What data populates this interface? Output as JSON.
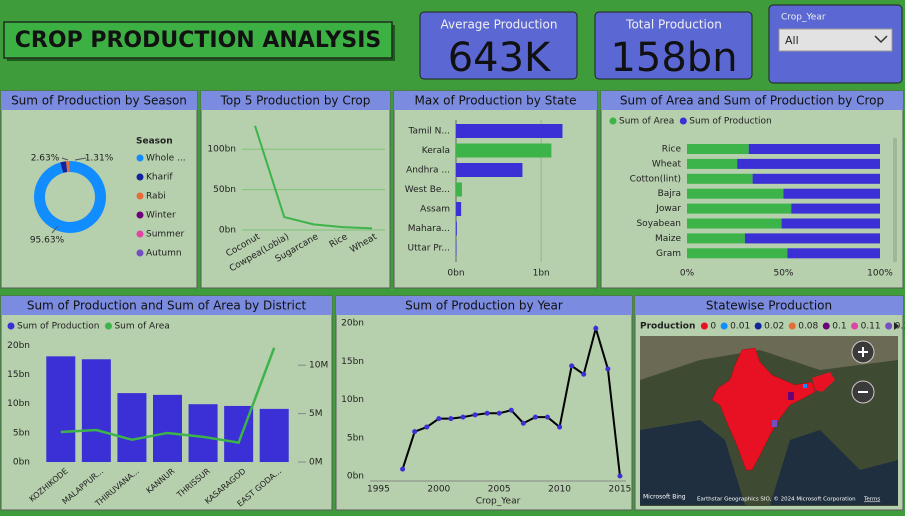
{
  "header": {
    "title": "CROP PRODUCTION ANALYSIS"
  },
  "kpis": [
    {
      "label": "Average Production",
      "value": "643K"
    },
    {
      "label": "Total Production",
      "value": "158bn"
    }
  ],
  "filter": {
    "label": "Crop_Year",
    "value": "All"
  },
  "chart_data": [
    {
      "type": "donut",
      "title": "Sum of Production by Season",
      "legend_title": "Season",
      "categories": [
        "Whole ...",
        "Kharif",
        "Rabi",
        "Winter",
        "Summer",
        "Autumn"
      ],
      "values": [
        95.63,
        2.63,
        1.31,
        0.1,
        0.2,
        0.13
      ],
      "value_labels": [
        "95.63%",
        "2.63%",
        "1.31%",
        null,
        null,
        null
      ],
      "colors": [
        "#118dff",
        "#12239e",
        "#e66c37",
        "#6b007b",
        "#e044a7",
        "#744ec2"
      ]
    },
    {
      "type": "line",
      "title": "Top 5 Production by Crop",
      "categories": [
        "Coconut",
        "Cowpea(Lobia)",
        "Sugarcane",
        "Rice",
        "Wheat"
      ],
      "values": [
        129,
        16,
        7,
        3.5,
        2
      ],
      "color": "#3cb44a",
      "grid": true,
      "ylim": [
        0,
        130
      ],
      "yticks": [
        {
          "value": 0,
          "label": "0bn"
        },
        {
          "value": 50,
          "label": "50bn"
        },
        {
          "value": 100,
          "label": "100bn"
        }
      ]
    },
    {
      "type": "bar",
      "title": "Max of Production by State",
      "categories": [
        "Tamil N...",
        "Kerala",
        "Andhra ...",
        "West Be...",
        "Assam",
        "Mahara...",
        "Uttar Pr..."
      ],
      "values": [
        1.25,
        1.12,
        0.78,
        0.07,
        0.06,
        0.01,
        0.005
      ],
      "colors": [
        "#3b2fd6",
        "#3cb44a",
        "#3b2fd6",
        "#3cb44a",
        "#3b2fd6",
        "#3b2fd6",
        "#3b2fd6"
      ],
      "xlim": [
        0,
        1.35
      ],
      "xticks": [
        {
          "value": 0,
          "label": "0bn"
        },
        {
          "value": 1,
          "label": "1bn"
        }
      ],
      "grid": true
    },
    {
      "type": "stackedbar",
      "title": "Sum of Area and Sum of Production by Crop",
      "categories": [
        "Rice",
        "Wheat",
        "Cotton(lint)",
        "Bajra",
        "Jowar",
        "Soyabean",
        "Maize",
        "Gram"
      ],
      "series": [
        {
          "name": "Sum of Area",
          "color": "#3cb44a",
          "values": [
            32,
            26,
            34,
            50,
            54,
            49,
            30,
            52
          ]
        },
        {
          "name": "Sum of Production",
          "color": "#3b2fd6",
          "values": [
            68,
            74,
            66,
            50,
            46,
            51,
            70,
            48
          ]
        }
      ],
      "xlim": [
        0,
        100
      ],
      "xticks": [
        {
          "value": 0,
          "label": "0%"
        },
        {
          "value": 50,
          "label": "50%"
        },
        {
          "value": 100,
          "label": "100%"
        }
      ]
    },
    {
      "type": "combo",
      "title": "Sum of Production and Sum of Area by District",
      "categories": [
        "KOZHIKODE",
        "MALAPPUR...",
        "THIRUVANA...",
        "KANNUR",
        "THRISSUR",
        "KASARAGOD",
        "EAST GODA..."
      ],
      "series": [
        {
          "name": "Sum of Production",
          "color": "#3b2fd6",
          "values": [
            18.1,
            17.6,
            11.8,
            11.5,
            9.9,
            9.6,
            9.1
          ]
        },
        {
          "name": "Sum of Area",
          "color": "#3cb44a",
          "axis": "y2",
          "values": [
            3.1,
            3.3,
            2.3,
            3.0,
            2.6,
            2.0,
            11.8
          ]
        }
      ],
      "ylim": [
        0,
        20.9
      ],
      "yticks": [
        {
          "value": 0,
          "label": "0bn"
        },
        {
          "value": 5,
          "label": "5bn"
        },
        {
          "value": 10,
          "label": "10bn"
        },
        {
          "value": 15,
          "label": "15bn"
        },
        {
          "value": 20,
          "label": "20bn"
        }
      ],
      "y2lim": [
        0,
        12.6
      ],
      "y2ticks": [
        {
          "value": 0,
          "label": "0M"
        },
        {
          "value": 5,
          "label": "5M"
        },
        {
          "value": 10,
          "label": "10M"
        }
      ]
    },
    {
      "type": "line",
      "title": "Sum of Production by Year",
      "xlabel": "Crop_Year",
      "x": [
        1997,
        1998,
        1999,
        2000,
        2001,
        2002,
        2003,
        2004,
        2005,
        2006,
        2007,
        2008,
        2009,
        2010,
        2011,
        2012,
        2013,
        2014,
        2015
      ],
      "values": [
        0.9,
        5.8,
        6.4,
        7.5,
        7.5,
        7.7,
        8.0,
        8.2,
        8.2,
        8.6,
        6.9,
        7.7,
        7.7,
        6.4,
        14.4,
        13.3,
        19.3,
        14.0,
        0
      ],
      "color": "#000000",
      "marker_color": "#3b2fd6",
      "xlim": [
        1994.3,
        2015.5
      ],
      "xticks": [
        1995,
        2000,
        2005,
        2010,
        2015
      ],
      "ylim": [
        0,
        20.4
      ],
      "yticks": [
        {
          "value": 0,
          "label": "0bn"
        },
        {
          "value": 5,
          "label": "5bn"
        },
        {
          "value": 10,
          "label": "10bn"
        },
        {
          "value": 15,
          "label": "15bn"
        },
        {
          "value": 20,
          "label": "20bn"
        }
      ]
    },
    {
      "type": "map",
      "title": "Statewise Production",
      "legend_title": "Production",
      "categories": [
        0,
        0.01,
        0.02,
        0.08,
        0.1,
        0.11,
        0.12
      ],
      "colors": [
        "#e81123",
        "#118dff",
        "#12239e",
        "#e66c37",
        "#6b007b",
        "#e044a7",
        "#744ec2"
      ],
      "logo": "Microsoft Bing",
      "attribution": "Earthstar Geographics SIO, © 2024 Microsoft Corporation",
      "terms": "Terms"
    }
  ]
}
